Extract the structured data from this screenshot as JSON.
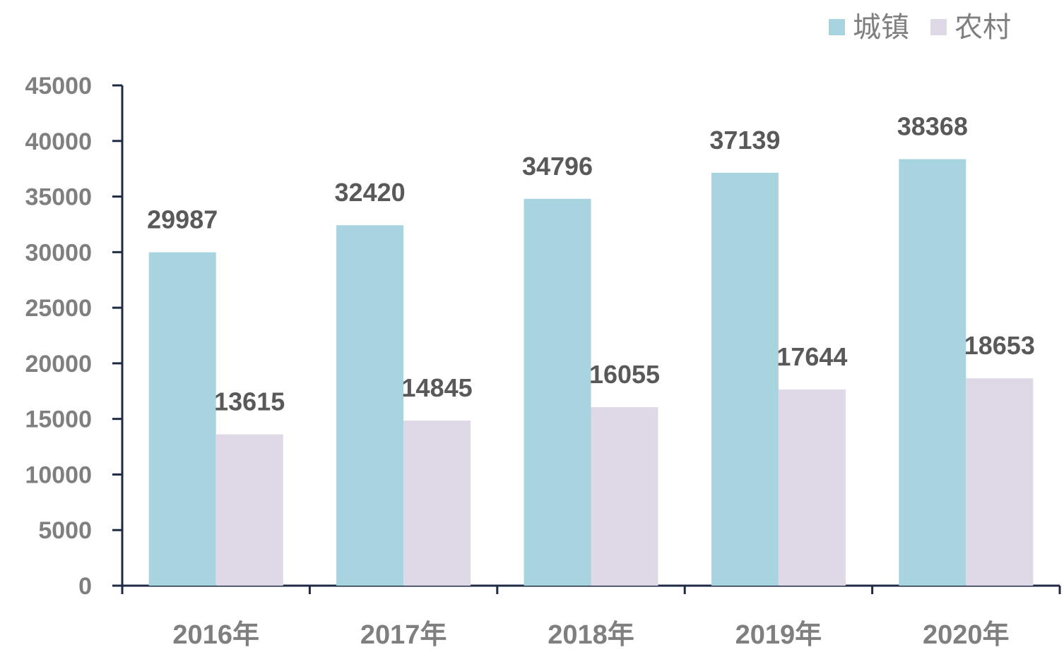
{
  "chart_data": {
    "type": "bar",
    "categories": [
      "2016年",
      "2017年",
      "2018年",
      "2019年",
      "2020年"
    ],
    "series": [
      {
        "name": "城镇",
        "values": [
          29987,
          32420,
          34796,
          37139,
          38368
        ],
        "color": "#a7d4df"
      },
      {
        "name": "农村",
        "values": [
          13615,
          14845,
          16055,
          17644,
          18653
        ],
        "color": "#dfd8e7"
      }
    ],
    "ylim": [
      0,
      45000
    ],
    "ytick_step": 5000,
    "yticks": [
      "0",
      "5000",
      "10000",
      "15000",
      "20000",
      "25000",
      "30000",
      "35000",
      "40000",
      "45000"
    ],
    "data_labels": true,
    "legend_position": "top-right",
    "grid": false,
    "colors": {
      "axis": "#1f2a44",
      "tick_text": "#7f7f7f",
      "label_text": "#595959"
    }
  }
}
